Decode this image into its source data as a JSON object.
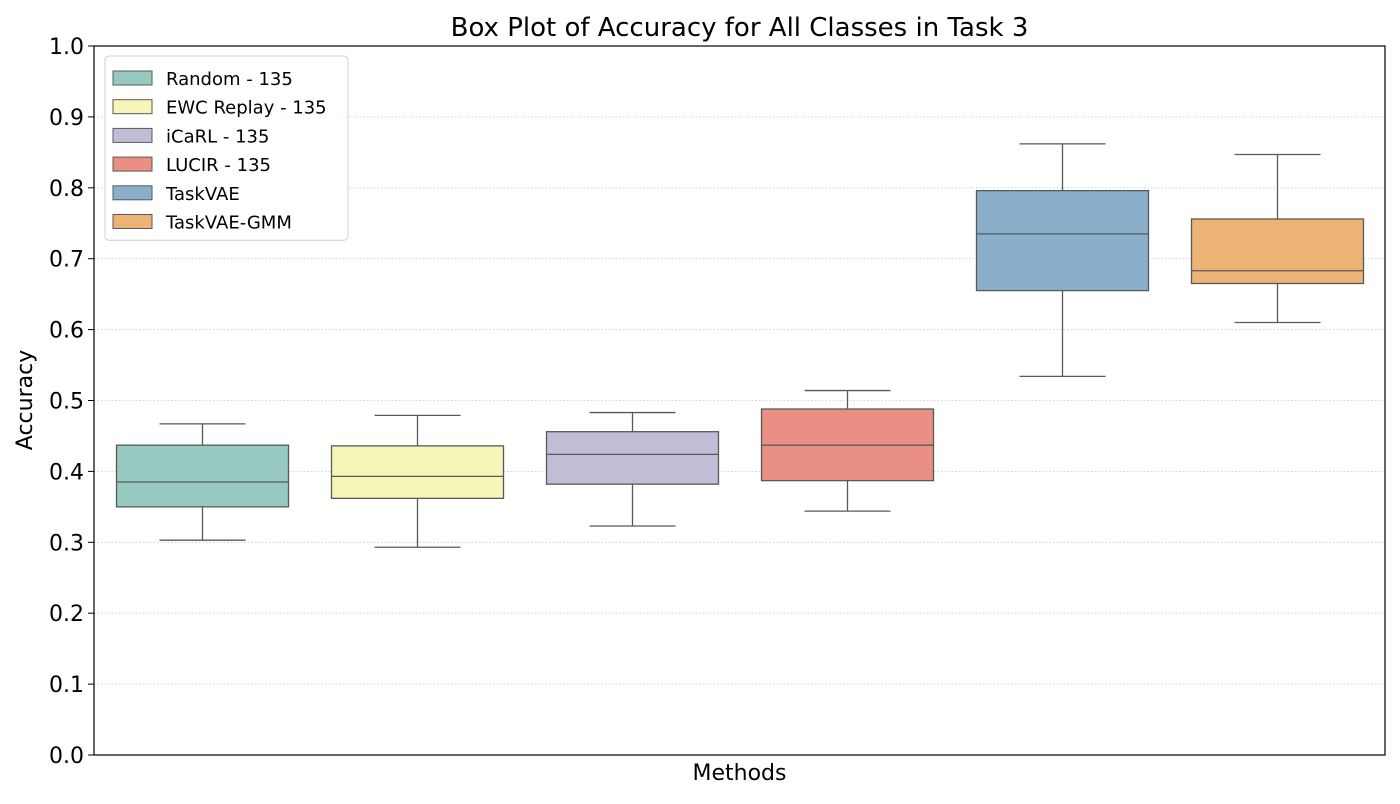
{
  "chart_data": {
    "type": "box",
    "title": "Box Plot of Accuracy for All Classes in Task 3",
    "xlabel": "Methods",
    "ylabel": "Accuracy",
    "ylim": [
      0.0,
      1.0
    ],
    "yticks": [
      0.0,
      0.1,
      0.2,
      0.3,
      0.4,
      0.5,
      0.6,
      0.7,
      0.8,
      0.9,
      1.0
    ],
    "ytick_labels": [
      "0.0",
      "0.1",
      "0.2",
      "0.3",
      "0.4",
      "0.5",
      "0.6",
      "0.7",
      "0.8",
      "0.9",
      "1.0"
    ],
    "grid": {
      "y": true,
      "x": false,
      "style": "dotted"
    },
    "legend_position": "upper-left",
    "series": [
      {
        "name": "Random - 135",
        "color": "#96c9bf",
        "whisker_low": 0.303,
        "q1": 0.35,
        "median": 0.385,
        "q3": 0.437,
        "whisker_high": 0.467
      },
      {
        "name": "EWC Replay - 135",
        "color": "#f6f6b9",
        "whisker_low": 0.293,
        "q1": 0.362,
        "median": 0.393,
        "q3": 0.436,
        "whisker_high": 0.479
      },
      {
        "name": "iCaRL - 135",
        "color": "#c1bdd7",
        "whisker_low": 0.323,
        "q1": 0.382,
        "median": 0.424,
        "q3": 0.456,
        "whisker_high": 0.483
      },
      {
        "name": "LUCIR - 135",
        "color": "#ea8f83",
        "whisker_low": 0.344,
        "q1": 0.387,
        "median": 0.437,
        "q3": 0.488,
        "whisker_high": 0.514
      },
      {
        "name": "TaskVAE",
        "color": "#8aafca",
        "whisker_low": 0.534,
        "q1": 0.655,
        "median": 0.735,
        "q3": 0.796,
        "whisker_high": 0.862
      },
      {
        "name": "TaskVAE-GMM",
        "color": "#ecb375",
        "whisker_low": 0.61,
        "q1": 0.665,
        "median": 0.683,
        "q3": 0.756,
        "whisker_high": 0.847
      }
    ]
  }
}
